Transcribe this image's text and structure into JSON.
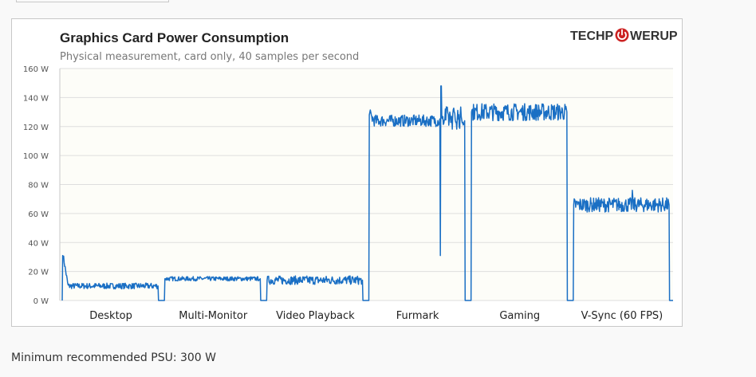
{
  "page": {
    "footer": "Minimum recommended PSU: 300 W"
  },
  "logo": {
    "part1": "TECHP",
    "part2": "WERUP",
    "color": "#333333",
    "accent": "#cc2222"
  },
  "chart_data": {
    "type": "line",
    "title": "Graphics  Card Power Consumption",
    "subtitle": "Physical measurement, card only, 40 samples per second",
    "xlabel": "",
    "ylabel": "",
    "ylim": [
      0,
      160
    ],
    "yticks": [
      0,
      20,
      40,
      60,
      80,
      100,
      120,
      140,
      160
    ],
    "ytick_labels": [
      "0 W",
      "20 W",
      "40 W",
      "60 W",
      "80 W",
      "100 W",
      "120 W",
      "140 W",
      "160 W"
    ],
    "categories": [
      "Desktop",
      "Multi-Monitor",
      "Video Playback",
      "Furmark",
      "Gaming",
      "V-Sync (60 FPS)"
    ],
    "grid": true,
    "legend": "none",
    "series_color": "#1a6fc4",
    "series": [
      {
        "values": [
          {
            "category": "Desktop",
            "start": 31,
            "settle": 11,
            "mean": 10,
            "noise": 2
          },
          {
            "category": "Multi-Monitor",
            "start": 15,
            "settle": 15,
            "mean": 15,
            "noise": 1.5
          },
          {
            "category": "Video Playback",
            "start": 14,
            "settle": 14,
            "mean": 14,
            "noise": 3
          },
          {
            "category": "Furmark",
            "start": 128,
            "settle": 124,
            "mean": 124,
            "noise": 4,
            "dip_min": 31,
            "spike_max": 148
          },
          {
            "category": "Gaming",
            "start": 130,
            "settle": 130,
            "mean": 130,
            "noise": 6
          },
          {
            "category": "V-Sync (60 FPS)",
            "start": 66,
            "settle": 66,
            "mean": 66,
            "noise": 5,
            "spike_max": 76
          }
        ]
      }
    ]
  }
}
